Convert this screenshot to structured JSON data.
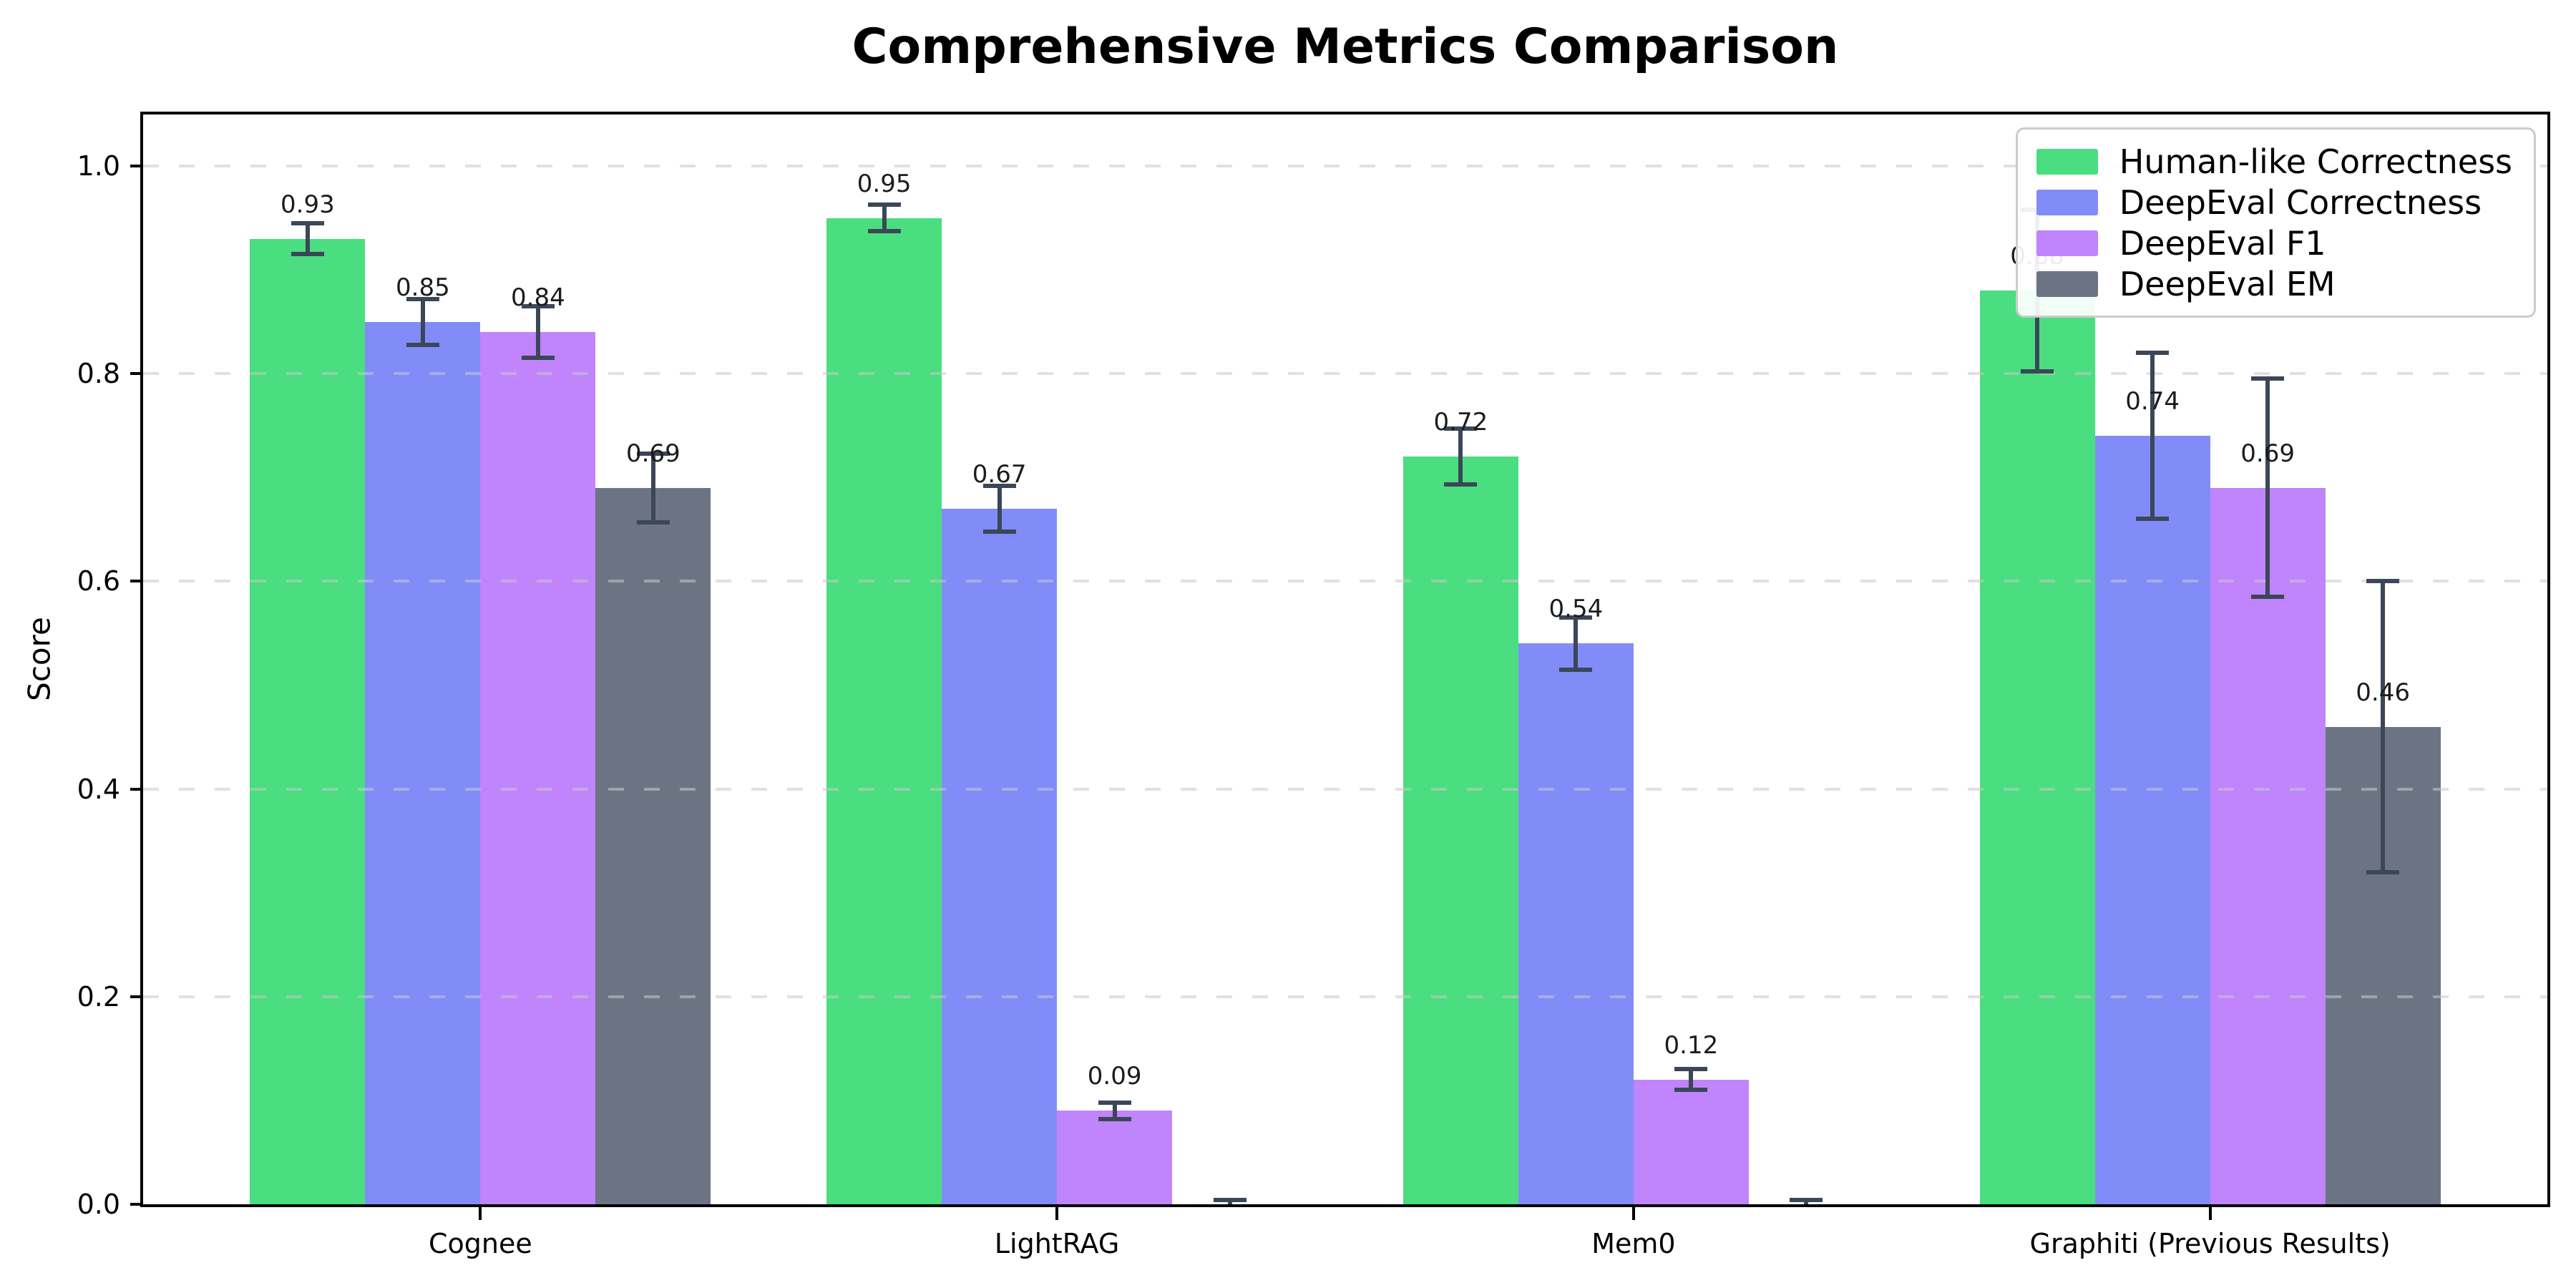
{
  "title": "Comprehensive Metrics Comparison",
  "chart_data": {
    "type": "bar",
    "title": "Comprehensive Metrics Comparison",
    "ylabel": "Score",
    "xlabel": "",
    "categories": [
      "Cognee",
      "LightRAG",
      "Mem0",
      "Graphiti (Previous Results)"
    ],
    "ylim": [
      0.0,
      1.05
    ],
    "yticks": [
      {
        "value": 0.0,
        "label": "0.0"
      },
      {
        "value": 0.2,
        "label": "0.2"
      },
      {
        "value": 0.4,
        "label": "0.4"
      },
      {
        "value": 0.6,
        "label": "0.6"
      },
      {
        "value": 0.8,
        "label": "0.8"
      },
      {
        "value": 1.0,
        "label": "1.0"
      }
    ],
    "grid": "horizontal-dashed",
    "legend_position": "upper-right",
    "colors": {
      "grid": "#c8c8c8",
      "error_bar": "#3b4757",
      "axis": "#000000",
      "legend_border": "#cccccc",
      "label_text": "#1c1c1c"
    },
    "series": [
      {
        "name": "Human-like Correctness",
        "color": "#4ade80",
        "values": [
          0.93,
          0.95,
          0.72,
          0.88
        ],
        "errors": [
          0.015,
          0.013,
          0.027,
          0.078
        ],
        "labels": [
          "0.93",
          "0.95",
          "0.72",
          "0.88"
        ]
      },
      {
        "name": "DeepEval Correctness",
        "color": "#818cf8",
        "values": [
          0.85,
          0.67,
          0.54,
          0.74
        ],
        "errors": [
          0.022,
          0.022,
          0.025,
          0.08
        ],
        "labels": [
          "0.85",
          "0.67",
          "0.54",
          "0.74"
        ]
      },
      {
        "name": "DeepEval F1",
        "color": "#c084fc",
        "values": [
          0.84,
          0.09,
          0.12,
          0.69
        ],
        "errors": [
          0.025,
          0.008,
          0.01,
          0.105
        ],
        "labels": [
          "0.84",
          "0.09",
          "0.12",
          "0.69"
        ]
      },
      {
        "name": "DeepEval EM",
        "color": "#6c7484",
        "values": [
          0.69,
          0.0,
          0.0,
          0.46
        ],
        "errors": [
          0.033,
          0.004,
          0.004,
          0.14
        ],
        "labels": [
          "0.69",
          null,
          null,
          "0.46"
        ]
      }
    ]
  }
}
